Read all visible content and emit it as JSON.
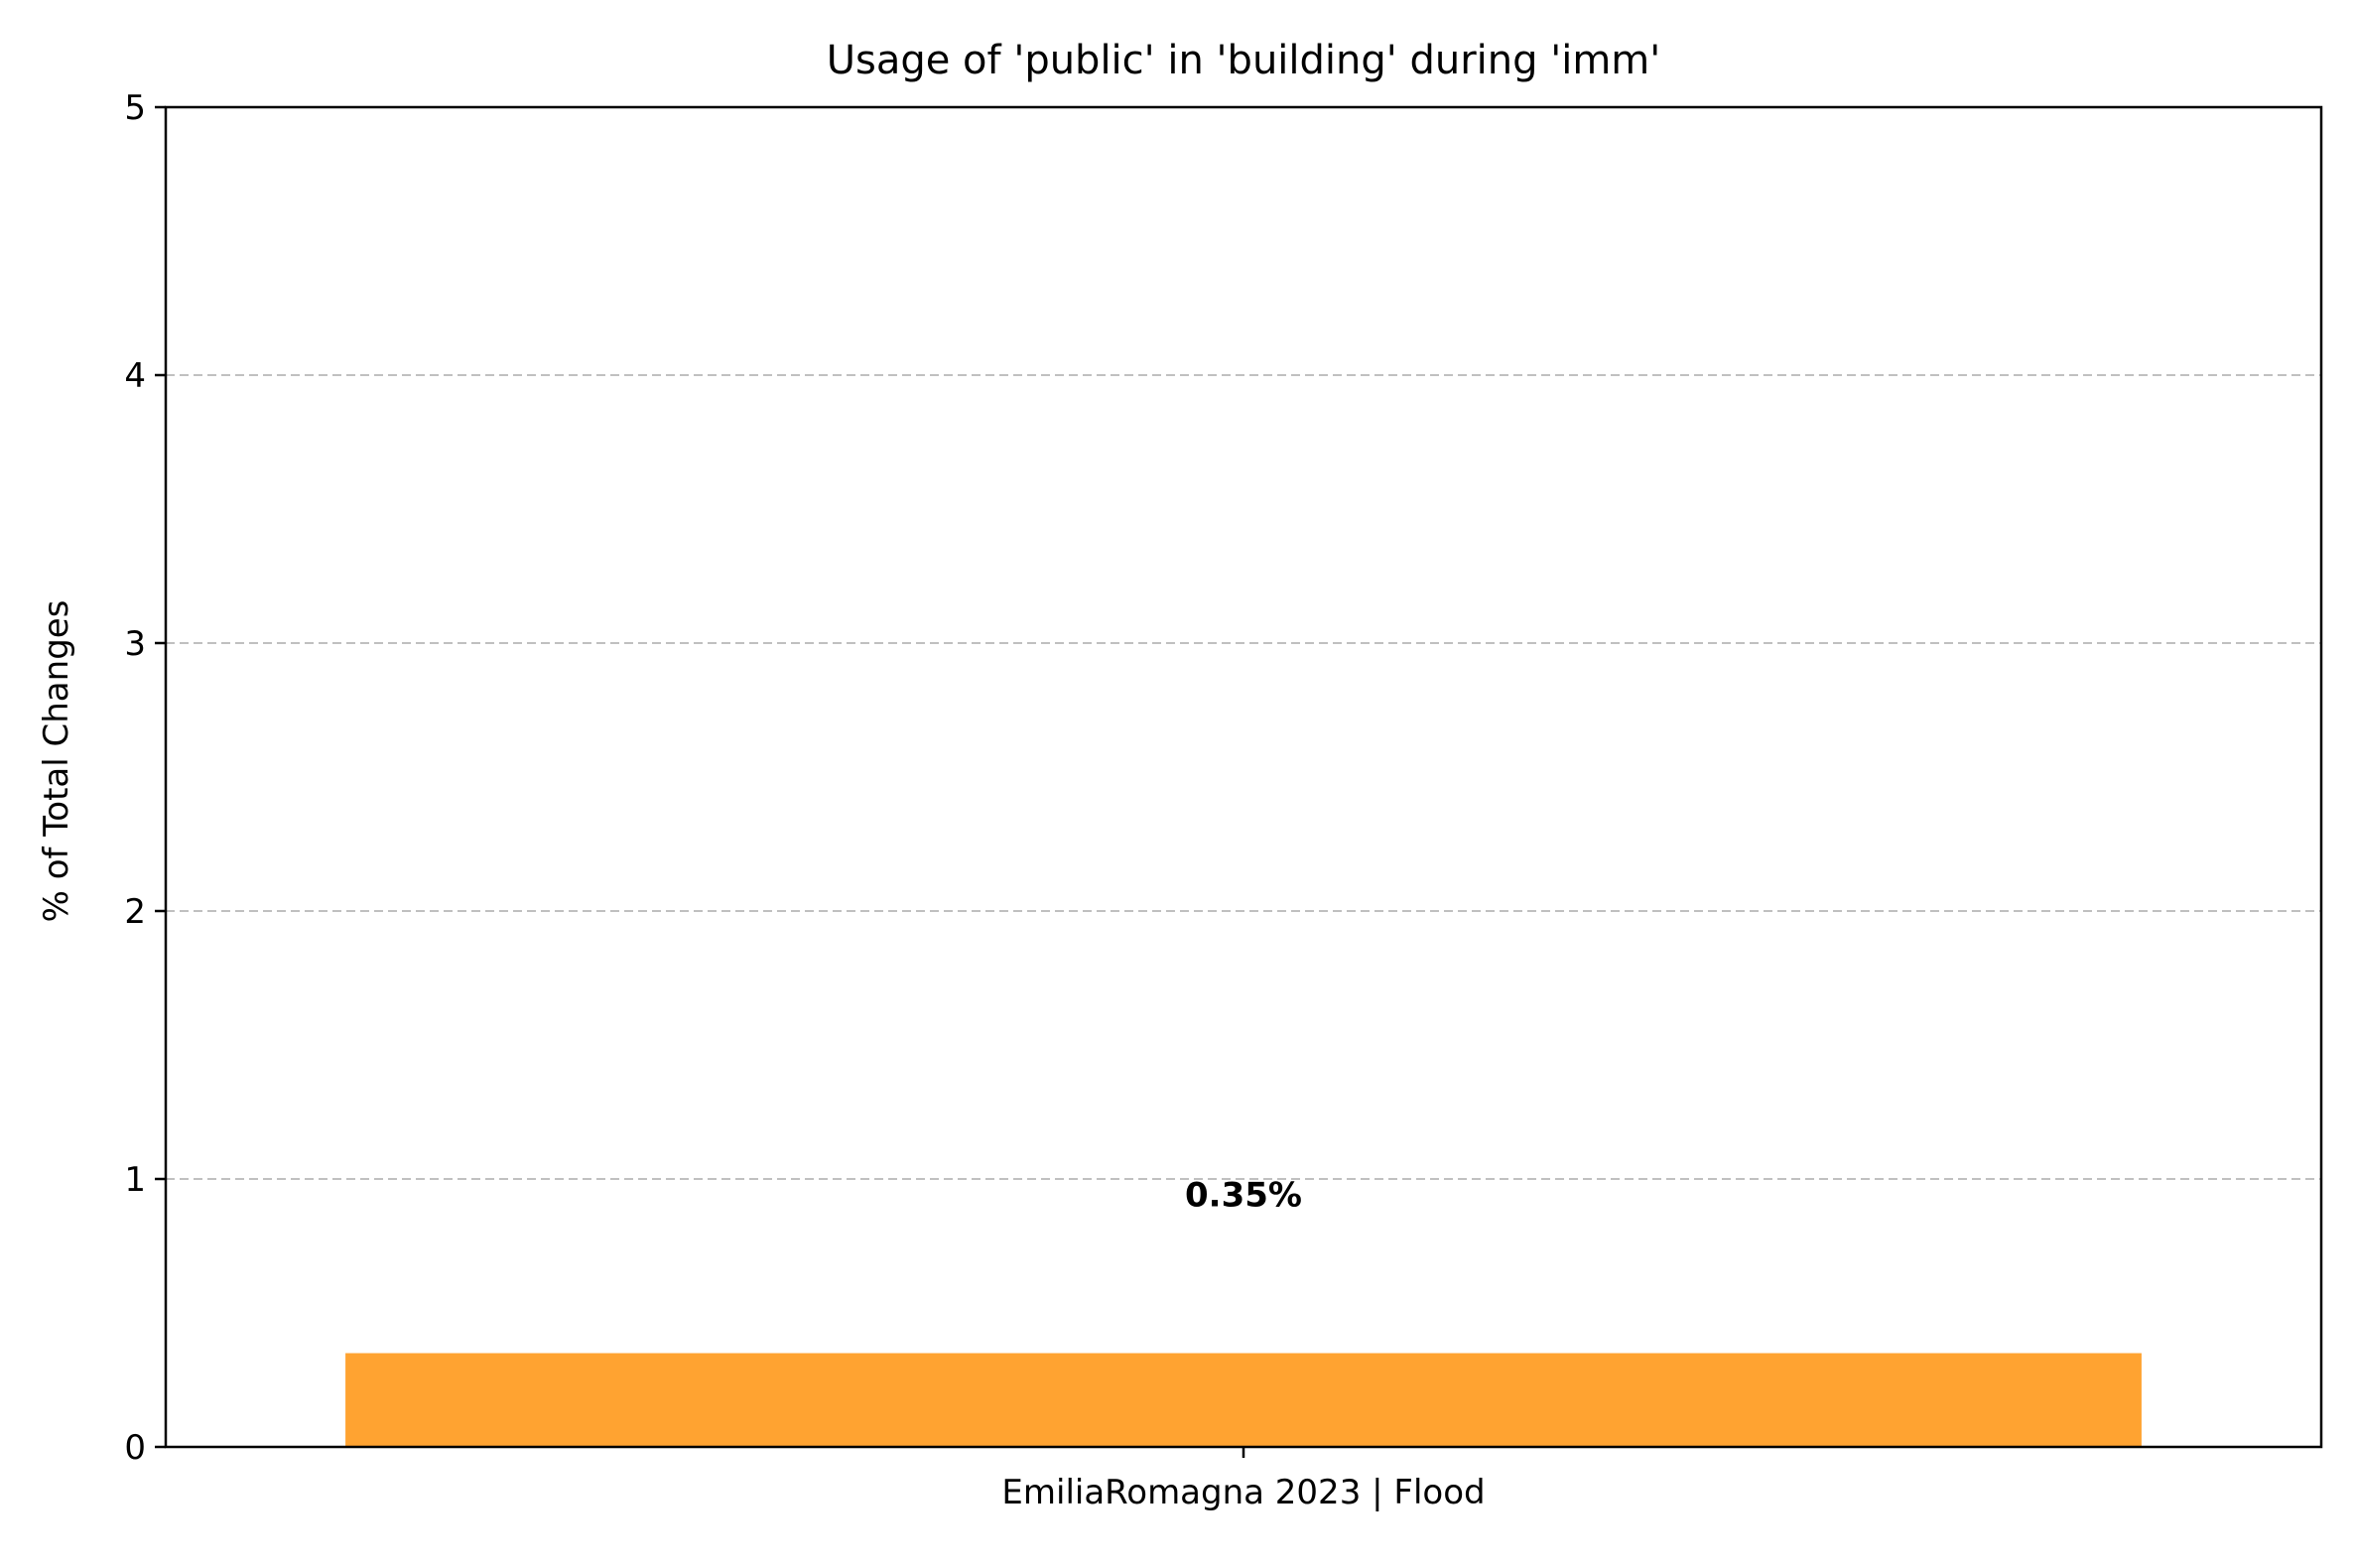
{
  "chart_data": {
    "type": "bar",
    "title": "Usage of 'public' in 'building' during 'imm'",
    "xlabel": "",
    "ylabel": "% of Total Changes",
    "categories": [
      "EmiliaRomagna 2023 | Flood"
    ],
    "values": [
      0.35
    ],
    "data_labels": [
      "0.35%"
    ],
    "ylim": [
      0,
      5
    ],
    "yticks": [
      0,
      1,
      2,
      3,
      4,
      5
    ],
    "ytick_labels": [
      "0",
      "1",
      "2",
      "3",
      "4",
      "5"
    ],
    "grid": "y-dashed",
    "legend": "none",
    "bar_color": "#ffa331"
  }
}
